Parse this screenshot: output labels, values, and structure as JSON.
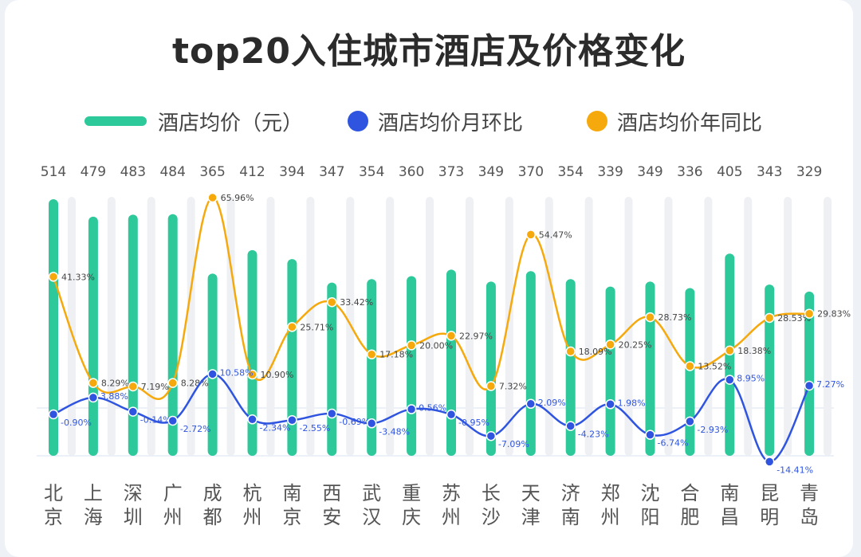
{
  "title": "top20入住城市酒店及价格变化",
  "legend": {
    "price": "酒店均价（元）",
    "mom": "酒店均价月环比",
    "yoy": "酒店均价年同比"
  },
  "colors": {
    "bar": "#2dc99a",
    "track": "#eef0f3",
    "mom": "#2f55e0",
    "yoy": "#f5a90d"
  },
  "chart_data": {
    "type": "bar",
    "title": "top20入住城市酒店及价格变化",
    "categories": [
      "北京",
      "上海",
      "深圳",
      "广州",
      "成都",
      "杭州",
      "南京",
      "西安",
      "武汉",
      "重庆",
      "苏州",
      "长沙",
      "天津",
      "济南",
      "郑州",
      "沈阳",
      "合肥",
      "南昌",
      "昆明",
      "青岛"
    ],
    "category_labels": [
      [
        "北",
        "京"
      ],
      [
        "上",
        "海"
      ],
      [
        "深",
        "圳"
      ],
      [
        "广",
        "州"
      ],
      [
        "成",
        "都"
      ],
      [
        "杭",
        "州"
      ],
      [
        "南",
        "京"
      ],
      [
        "西",
        "安"
      ],
      [
        "武",
        "汉"
      ],
      [
        "重",
        "庆"
      ],
      [
        "苏",
        "州"
      ],
      [
        "长",
        "沙"
      ],
      [
        "天",
        "津"
      ],
      [
        "济",
        "南"
      ],
      [
        "郑",
        "州"
      ],
      [
        "沈",
        "阳"
      ],
      [
        "合",
        "肥"
      ],
      [
        "南",
        "昌"
      ],
      [
        "昆",
        "明"
      ],
      [
        "青",
        "岛"
      ]
    ],
    "series": [
      {
        "name": "酒店均价（元）",
        "type": "bar",
        "values": [
          514,
          479,
          483,
          484,
          365,
          412,
          394,
          347,
          354,
          360,
          373,
          349,
          370,
          354,
          339,
          349,
          336,
          405,
          343,
          329
        ]
      },
      {
        "name": "酒店均价月环比",
        "type": "line",
        "unit": "%",
        "values": [
          -0.9,
          3.88,
          -0.14,
          -2.72,
          10.58,
          -2.34,
          -2.55,
          -0.69,
          -3.48,
          0.56,
          -0.95,
          -7.09,
          2.09,
          -4.23,
          1.98,
          -6.74,
          -2.93,
          8.95,
          -14.41,
          7.27
        ]
      },
      {
        "name": "酒店均价年同比",
        "type": "line",
        "unit": "%",
        "values": [
          41.33,
          8.29,
          7.19,
          8.28,
          65.96,
          10.9,
          25.71,
          33.42,
          17.18,
          20.0,
          22.97,
          7.32,
          54.47,
          18.09,
          20.25,
          28.73,
          13.52,
          18.38,
          28.53,
          29.83
        ]
      }
    ],
    "bar_labels": [
      "514",
      "479",
      "483",
      "484",
      "365",
      "412",
      "394",
      "347",
      "354",
      "360",
      "373",
      "349",
      "370",
      "354",
      "339",
      "349",
      "336",
      "405",
      "343",
      "329"
    ],
    "mom_labels": [
      "-0.90%",
      "3.88%",
      "-0.14%",
      "-2.72%",
      "10.58%",
      "-2.34%",
      "-2.55%",
      "-0.69%",
      "-3.48%",
      "0.56%",
      "-0.95%",
      "-7.09%",
      "2.09%",
      "-4.23%",
      "1.98%",
      "-6.74%",
      "-2.93%",
      "8.95%",
      "-14.41%",
      "7.27%"
    ],
    "yoy_labels": [
      "41.33%",
      "8.29%",
      "7.19%",
      "8.28%",
      "65.96%",
      "10.90%",
      "25.71%",
      "33.42%",
      "17.18%",
      "20.00%",
      "22.97%",
      "7.32%",
      "54.47%",
      "18.09%",
      "20.25%",
      "28.73%",
      "13.52%",
      "18.38%",
      "28.53%",
      "29.83%"
    ],
    "legend_position": "top"
  }
}
